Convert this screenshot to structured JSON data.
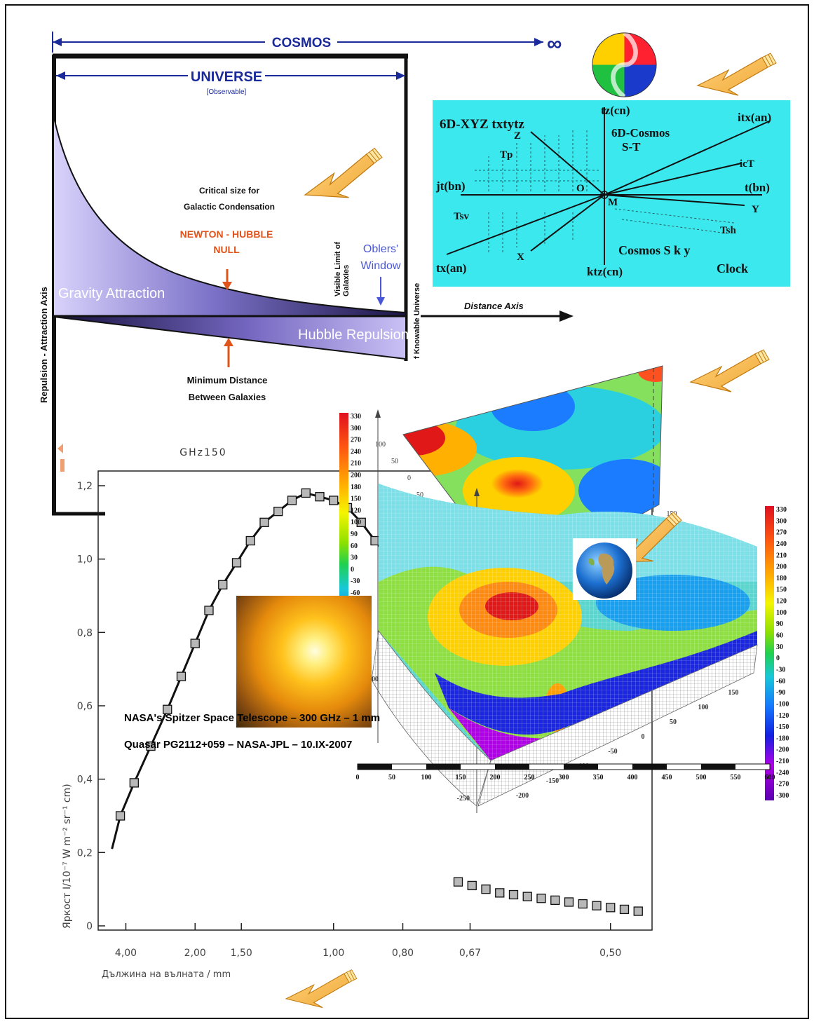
{
  "cosmos_diagram": {
    "cosmos_label": "COSMOS",
    "infinity": "∞",
    "universe_label": "UNIVERSE",
    "observable_label": "[Observable]",
    "critical_line1": "Critical size for",
    "critical_line2": "Galactic Condensation",
    "newton_line1": "NEWTON - HUBBLE",
    "newton_line2": "NULL",
    "oblers_line1": "Oblers'",
    "oblers_line2": "Window",
    "visible_line1": "Visible Limit of",
    "visible_line2": "Galaxies",
    "knowable": "f Knowable Universe",
    "gravity": "Gravity Attraction",
    "hubble": "Hubble Repulsion",
    "distance_axis": "Distance Axis",
    "min_line1": "Minimum Distance",
    "min_line2": "Between Galaxies",
    "y_axis": "Repulsion - Attraction Axis"
  },
  "sixd_diagram": {
    "title": "6D-XYZ txtytz",
    "tz_top": "tz(cn)",
    "itx": "itx(an)",
    "cosmos_st_1": "6D-Cosmos",
    "cosmos_st_2": "S-T",
    "z": "Z",
    "tp": "Tp",
    "ict": "icT",
    "jt": "jt(bn)",
    "o": "O",
    "m": "M",
    "t_right": "t(bn)",
    "y": "Y",
    "tsv": "Tsv",
    "tsh": "Tsh",
    "x": "X",
    "sky": "Cosmos  S k y",
    "clock": "Clock",
    "tx_bottom": "tx(an)",
    "ktz": "ktz(cn)"
  },
  "spectrum_chart": {
    "top_label": "GHz150",
    "ylabel": "Яркост I/10⁻⁷ W m⁻² sr⁻¹ cm)",
    "xlabel": "Дължина на вълната / mm",
    "yticks": [
      "0",
      "0,2",
      "0,4",
      "0,6",
      "0,8",
      "1,0",
      "1,2"
    ],
    "xticks": [
      "4,00",
      "2,00",
      "1,50",
      "1,00",
      "0,80",
      "0,67",
      "0,50"
    ]
  },
  "colorbar_values": [
    "330",
    "300",
    "270",
    "240",
    "210",
    "200",
    "180",
    "150",
    "120",
    "100",
    "90",
    "60",
    "30",
    "0",
    "-30",
    "-60",
    "-90",
    "-100",
    "-120",
    "-150",
    "-180",
    "-200",
    "-210",
    "-240",
    "-270",
    "-300"
  ],
  "scale_bar": [
    "0",
    "50",
    "100",
    "150",
    "200",
    "250",
    "300",
    "350",
    "400",
    "450",
    "500",
    "550",
    "600"
  ],
  "surface_axis_labels": {
    "top_y": [
      "100",
      "50",
      "0",
      "-50",
      "-100",
      "-150",
      "-200",
      "-250"
    ],
    "top_x": [
      "-200",
      "-150",
      "-100",
      "-50",
      "0",
      "50",
      "100",
      "150"
    ],
    "bottom_y": [
      "100",
      "-250"
    ],
    "bottom_x": [
      "-200",
      "-150",
      "-100",
      "-50",
      "0",
      "50",
      "100",
      "150"
    ]
  },
  "captions": {
    "line1": "NASA's Spitzer Space Telescope – 300 GHz – 1 mm",
    "line2": "Quasar PG2112+059 – NASA-JPL – 10.IX-2007"
  },
  "chart_data": {
    "type": "scatter",
    "title": "",
    "top_label": "GHz150",
    "xlabel": "Дължина на вълната / mm",
    "ylabel": "Яркост I/10⁻⁷ W m⁻² sr⁻¹ cm)",
    "x_tick_labels": [
      "4,00",
      "2,00",
      "1,50",
      "1,00",
      "0,80",
      "0,67",
      "0,50"
    ],
    "ylim": [
      0,
      1.2
    ],
    "x_unit": "frequency (cm⁻¹, ticks labelled by wavelength in mm)",
    "series": [
      {
        "x": [
          2.3,
          2.8,
          3.4,
          4.0,
          4.5,
          5.0,
          5.5,
          6.0,
          6.5,
          7.0,
          7.5,
          8.0,
          8.5,
          9.0,
          9.5,
          10.0,
          10.5,
          11.0,
          11.5,
          12.0,
          12.5,
          13.0,
          13.5,
          14.0,
          14.5,
          15.0,
          15.5,
          16.0,
          16.5,
          17.0,
          17.5,
          18.0,
          18.5,
          19.0,
          19.5,
          20.0,
          20.5,
          21.0
        ],
        "y": [
          0.3,
          0.39,
          0.49,
          0.59,
          0.68,
          0.77,
          0.86,
          0.93,
          0.99,
          1.05,
          1.1,
          1.13,
          1.16,
          1.18,
          1.17,
          1.16,
          1.14,
          1.1,
          1.05,
          1.0,
          0.95,
          0.9,
          0.82,
          0.72,
          0.12,
          0.11,
          0.1,
          0.09,
          0.085,
          0.08,
          0.075,
          0.07,
          0.065,
          0.06,
          0.055,
          0.05,
          0.045,
          0.04
        ]
      }
    ]
  }
}
